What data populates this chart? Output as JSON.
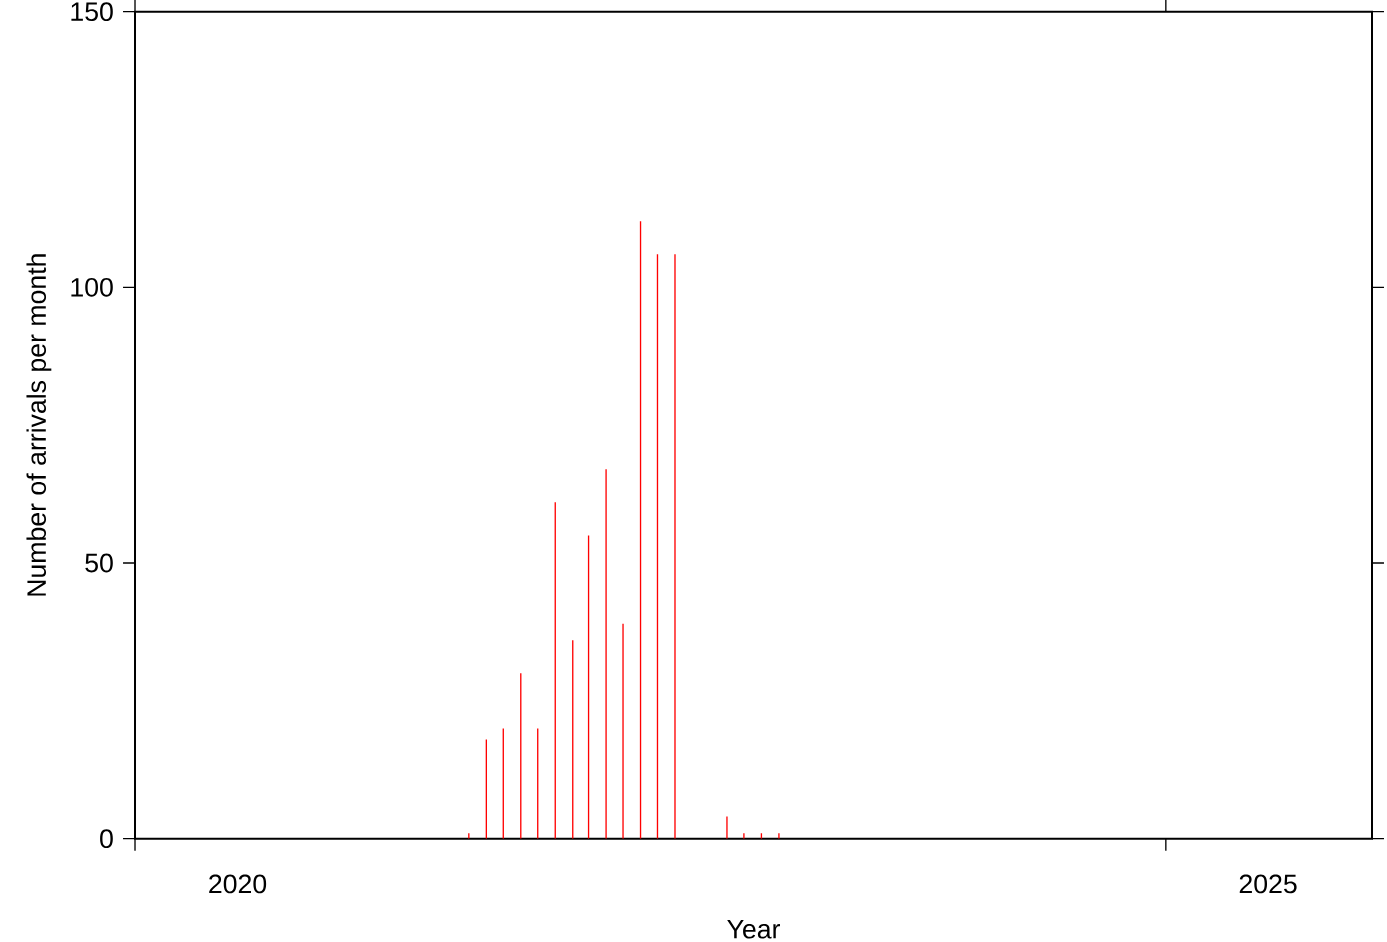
{
  "chart_data": {
    "type": "bar",
    "xlabel": "Year",
    "ylabel": "Number of arrivals per month",
    "x": [
      "2021-08-15",
      "2021-09-15",
      "2021-10-15",
      "2021-11-15",
      "2021-12-15",
      "2022-01-15",
      "2022-02-15",
      "2022-03-15",
      "2022-04-15",
      "2022-05-15",
      "2022-06-15",
      "2022-07-15",
      "2022-08-15",
      "2022-11-15",
      "2022-12-15",
      "2023-01-15",
      "2023-02-15"
    ],
    "values": [
      1,
      18,
      20,
      30,
      20,
      61,
      36,
      55,
      67,
      39,
      112,
      106,
      106,
      4,
      1,
      1,
      1
    ],
    "color": "#ff0000",
    "xlim": [
      "2020",
      "2026"
    ],
    "xticks": [
      {
        "value": "2020",
        "label": null
      },
      {
        "value": "2020-07",
        "label": "2020"
      },
      {
        "value": "2025",
        "label": null
      },
      {
        "value": "2025-07",
        "label": "2025"
      }
    ],
    "ylim": [
      0,
      150
    ],
    "yticks": [
      0,
      50,
      100,
      150
    ]
  }
}
